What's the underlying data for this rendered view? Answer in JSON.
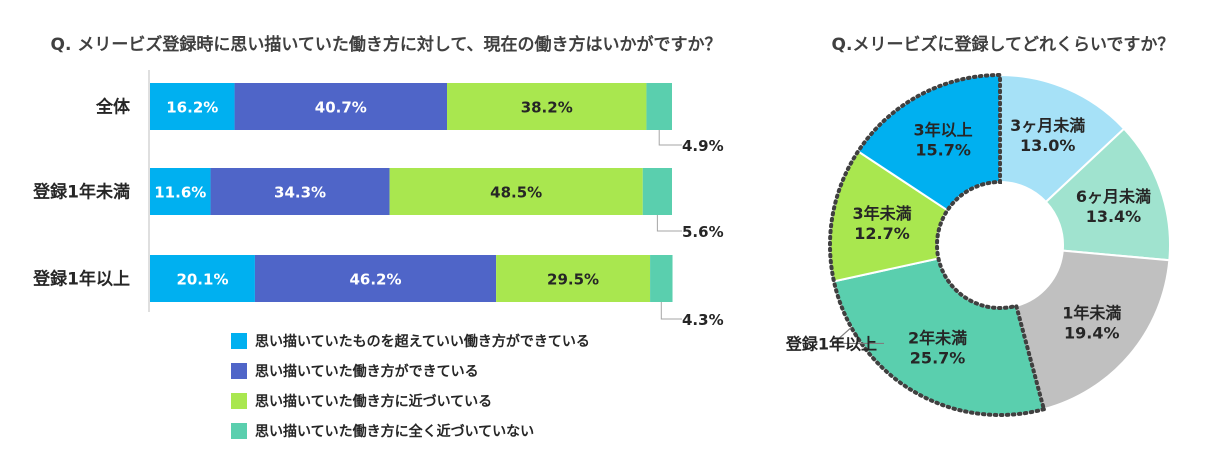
{
  "chart_data": [
    {
      "type": "bar",
      "stacked": true,
      "orientation": "horizontal",
      "title": "Q. メリービズ登録時に思い描いていた働き方に対して、現在の働き方はいかがですか？",
      "categories": [
        "全体",
        "登録1年未満",
        "登録1年以上"
      ],
      "unit": "%",
      "xlim": [
        0,
        100
      ],
      "legend_position": "bottom",
      "series": [
        {
          "name": "思い描いていたものを超えていい働き方ができている",
          "color": "#00B0F0",
          "label_color": "#ffffff",
          "values": [
            16.2,
            11.6,
            20.1
          ]
        },
        {
          "name": "思い描いていた働き方ができている",
          "color": "#4F65C8",
          "label_color": "#ffffff",
          "values": [
            40.7,
            34.3,
            46.2
          ]
        },
        {
          "name": "思い描いていた働き方に近づいている",
          "color": "#A9E74F",
          "label_color": "#262626",
          "values": [
            38.2,
            48.5,
            29.5
          ]
        },
        {
          "name": "思い描いていた働き方に全く近づいていない",
          "color": "#5ACFAE",
          "label_color": "#262626",
          "values": [
            4.9,
            5.6,
            4.3
          ]
        }
      ]
    },
    {
      "type": "pie",
      "donut": true,
      "title": "Q.メリービズに登録してどれくらいですか？",
      "unit": "%",
      "slices": [
        {
          "label": "3ヶ月未満",
          "value": 13.0,
          "color": "#A6E1F7",
          "group": "under1"
        },
        {
          "label": "6ヶ月未満",
          "value": 13.4,
          "color": "#A0E3CF",
          "group": "under1"
        },
        {
          "label": "1年未満",
          "value": 19.4,
          "color": "#C0C0C0",
          "group": "under1"
        },
        {
          "label": "2年未満",
          "value": 25.7,
          "color": "#5ACFAE",
          "group": "over1"
        },
        {
          "label": "3年未満",
          "value": 12.7,
          "color": "#A9E74F",
          "group": "over1"
        },
        {
          "label": "3年以上",
          "value": 15.7,
          "color": "#00B0F0",
          "group": "over1"
        }
      ],
      "annotation": "登録1年以上"
    }
  ]
}
